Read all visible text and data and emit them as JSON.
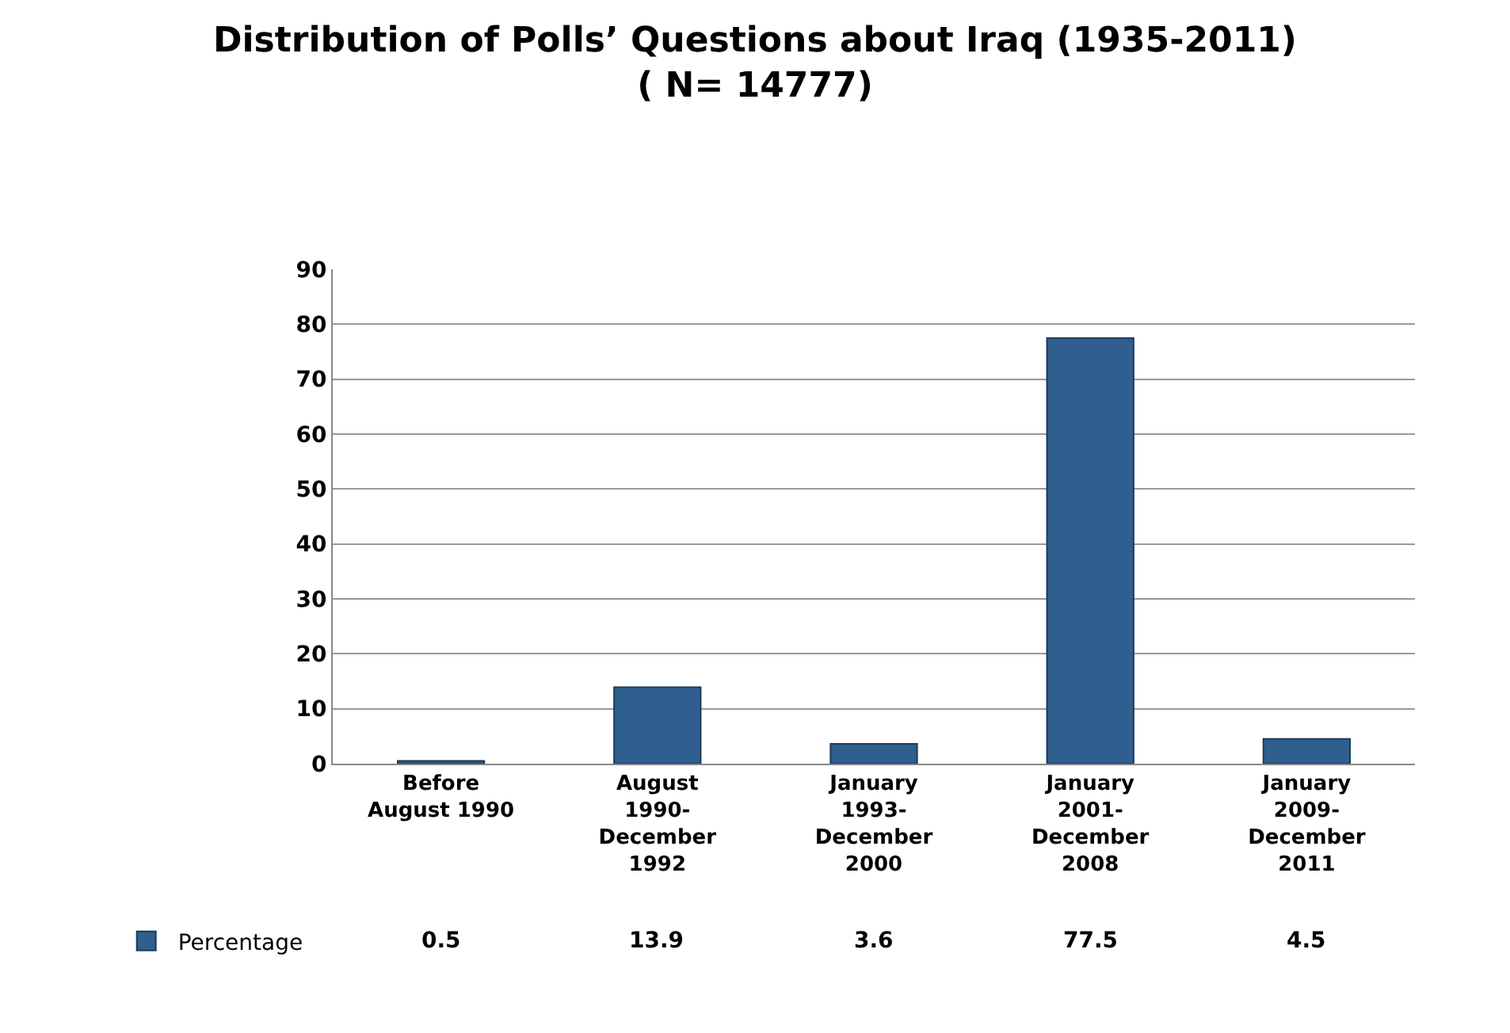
{
  "chart_data": {
    "type": "bar",
    "title": "Distribution of Polls’ Questions about Iraq (1935-2011)",
    "subtitle": "( N= 14777)",
    "categories": [
      "Before\nAugust 1990",
      "August\n1990-\nDecember\n1992",
      "January\n1993-\nDecember\n2000",
      "January\n2001-\nDecember\n2008",
      "January\n2009-\nDecember\n2011"
    ],
    "series": [
      {
        "name": "Percentage",
        "color": "#2f5f8e",
        "values": [
          0.5,
          13.9,
          3.6,
          77.5,
          4.5
        ]
      }
    ],
    "ylim": [
      0,
      90
    ],
    "yticks": [
      0,
      10,
      20,
      30,
      40,
      50,
      60,
      70,
      80,
      90
    ],
    "grid": "y",
    "legend": "bottom left",
    "data_labels": true
  }
}
